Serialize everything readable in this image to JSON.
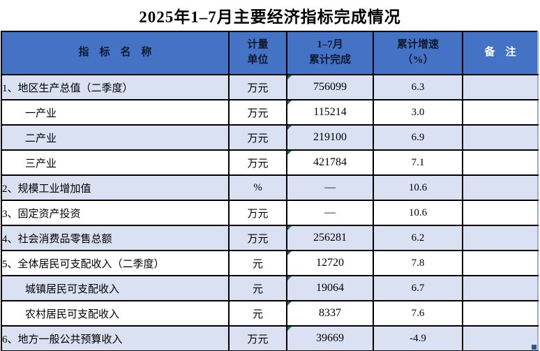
{
  "title": "2025年1–7月主要经济指标完成情况",
  "table": {
    "headers": {
      "indicator": "指　标　名　称",
      "unit": "计量\n单位",
      "completed": "1–7月\n累计完成",
      "growth": "累计增速\n（%）",
      "remark": "备　注"
    },
    "rows": [
      {
        "label": "1、地区生产总值（二季度）",
        "indent": false,
        "unit": "万元",
        "value": "756099",
        "growth": "6.3",
        "remark": ""
      },
      {
        "label": "一产业",
        "indent": true,
        "unit": "万元",
        "value": "115214",
        "growth": "3.0",
        "remark": ""
      },
      {
        "label": "二产业",
        "indent": true,
        "unit": "万元",
        "value": "219100",
        "growth": "6.9",
        "remark": ""
      },
      {
        "label": "三产业",
        "indent": true,
        "unit": "万元",
        "value": "421784",
        "growth": "7.1",
        "remark": ""
      },
      {
        "label": "2、规模工业增加值",
        "indent": false,
        "unit": "%",
        "value": "—",
        "growth": "10.6",
        "remark": ""
      },
      {
        "label": "3、固定资产投资",
        "indent": false,
        "unit": "万元",
        "value": "—",
        "growth": "10.6",
        "remark": ""
      },
      {
        "label": "4、社会消费品零售总额",
        "indent": false,
        "unit": "万元",
        "value": "256281",
        "growth": "6.2",
        "remark": ""
      },
      {
        "label": "5、全体居民可支配收入（二季度）",
        "indent": false,
        "unit": "元",
        "value": "12720",
        "growth": "7.8",
        "remark": ""
      },
      {
        "label": "城镇居民可支配收入",
        "indent": true,
        "unit": "元",
        "value": "19064",
        "growth": "6.7",
        "remark": ""
      },
      {
        "label": "农村居民可支配收入",
        "indent": true,
        "unit": "元",
        "value": "8337",
        "growth": "7.6",
        "remark": ""
      },
      {
        "label": "6、地方一般公共预算收入",
        "indent": false,
        "unit": "万元",
        "value": "39669",
        "growth": "-4.9",
        "remark": ""
      }
    ]
  },
  "colors": {
    "header_bg": "#4472C4",
    "row_alt_bg": "#D9E1F2",
    "header_text_dark": "#101A30",
    "header_text_light": "#FFFFFF",
    "grid_border": "#000000",
    "right_gridline": "#9AAEDB",
    "error_triangle": "#1E7145",
    "fill_handle": "#2E5396"
  }
}
